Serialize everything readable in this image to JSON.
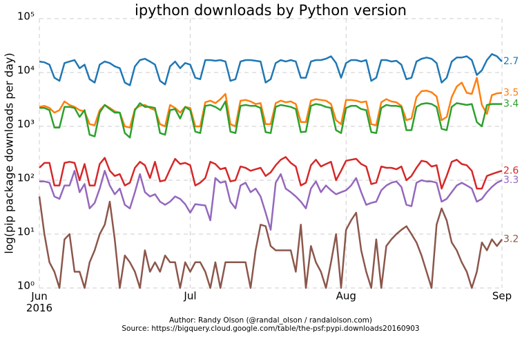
{
  "chart_data": {
    "type": "line",
    "title": "ipython downloads by Python version",
    "y_label": "log(pip package downloads per day)",
    "footer": [
      "Author: Randy Olson (@randal_olson / randalolson.com)",
      "Source: https://bigquery.cloud.google.com/table/the-psf:pypi.downloads20160903"
    ],
    "y_scale": "log",
    "grid": true,
    "ylim": [
      1,
      100000
    ],
    "yticks": [
      {
        "value": 1,
        "label": "10⁰"
      },
      {
        "value": 10,
        "label": "10¹"
      },
      {
        "value": 100,
        "label": "10²"
      },
      {
        "value": 1000,
        "label": "10³"
      },
      {
        "value": 10000,
        "label": "10⁴"
      },
      {
        "value": 100000,
        "label": "10⁵"
      }
    ],
    "xlim": [
      0,
      92
    ],
    "xticks": [
      {
        "value": 0,
        "label": "Jun\n2016"
      },
      {
        "value": 30,
        "label": "Jul"
      },
      {
        "value": 61,
        "label": "Aug"
      },
      {
        "value": 92,
        "label": "Sep"
      }
    ],
    "x": [
      0,
      1,
      2,
      3,
      4,
      5,
      6,
      7,
      8,
      9,
      10,
      11,
      12,
      13,
      14,
      15,
      16,
      17,
      18,
      19,
      20,
      21,
      22,
      23,
      24,
      25,
      26,
      27,
      28,
      29,
      30,
      31,
      32,
      33,
      34,
      35,
      36,
      37,
      38,
      39,
      40,
      41,
      42,
      43,
      44,
      45,
      46,
      47,
      48,
      49,
      50,
      51,
      52,
      53,
      54,
      55,
      56,
      57,
      58,
      59,
      60,
      61,
      62,
      63,
      64,
      65,
      66,
      67,
      68,
      69,
      70,
      71,
      72,
      73,
      74,
      75,
      76,
      77,
      78,
      79,
      80,
      81,
      82,
      83,
      84,
      85,
      86,
      87,
      88,
      89,
      90,
      91,
      92
    ],
    "series": [
      {
        "name": "2.7",
        "color": "#1f77b4",
        "values": [
          16000,
          15500,
          14000,
          8000,
          7000,
          15000,
          16000,
          17000,
          12000,
          14000,
          7500,
          6500,
          14000,
          16000,
          15000,
          13000,
          12000,
          6500,
          5800,
          13000,
          17000,
          18000,
          16000,
          14000,
          7000,
          6000,
          13000,
          16000,
          12000,
          15000,
          14000,
          8000,
          7500,
          17000,
          17000,
          16500,
          17000,
          16000,
          7000,
          7500,
          16000,
          17000,
          17000,
          16500,
          16000,
          6500,
          7500,
          15000,
          17000,
          16000,
          17000,
          16000,
          8000,
          8000,
          16000,
          17000,
          17000,
          18000,
          20000,
          15000,
          8000,
          15000,
          17000,
          17000,
          16000,
          17000,
          7000,
          8000,
          17000,
          17000,
          16000,
          16500,
          14000,
          7500,
          8000,
          16000,
          18000,
          19000,
          18000,
          15000,
          6500,
          8000,
          16000,
          19000,
          19000,
          20000,
          17000,
          9000,
          11000,
          17000,
          22000,
          20000,
          16000
        ]
      },
      {
        "name": "3.5",
        "color": "#ff7f0e",
        "values": [
          2300,
          2400,
          2200,
          1800,
          2000,
          2900,
          2500,
          2300,
          2000,
          1900,
          1100,
          1050,
          2000,
          2500,
          2200,
          1900,
          1800,
          1000,
          950,
          2100,
          2400,
          2500,
          2200,
          2000,
          1100,
          1000,
          2500,
          2200,
          1800,
          2300,
          2200,
          1000,
          1000,
          2800,
          3000,
          2700,
          3200,
          4000,
          1100,
          1000,
          3000,
          3100,
          2900,
          2600,
          2700,
          1100,
          1100,
          2700,
          3000,
          2800,
          2900,
          2600,
          1200,
          1200,
          3000,
          3200,
          3100,
          3000,
          2600,
          1300,
          1100,
          3100,
          3100,
          3000,
          2800,
          2900,
          1100,
          1050,
          2800,
          3200,
          2900,
          2800,
          2400,
          1300,
          1400,
          3500,
          4500,
          4600,
          4300,
          3600,
          1300,
          1500,
          3500,
          5500,
          6500,
          4200,
          4000,
          8000,
          2500,
          1700,
          3800,
          4100,
          4200
        ]
      },
      {
        "name": "3.4",
        "color": "#2ca02c",
        "values": [
          2200,
          2200,
          2000,
          950,
          950,
          2300,
          2300,
          2200,
          1500,
          2000,
          700,
          650,
          1800,
          2500,
          2100,
          1800,
          1800,
          750,
          620,
          2000,
          2700,
          2300,
          2300,
          2200,
          750,
          700,
          2000,
          2100,
          1400,
          2300,
          2000,
          800,
          750,
          2400,
          2500,
          2300,
          2000,
          2900,
          800,
          750,
          2400,
          2500,
          2400,
          2400,
          2200,
          780,
          750,
          2300,
          2500,
          2400,
          2300,
          2100,
          780,
          800,
          2400,
          2600,
          2500,
          2300,
          2200,
          850,
          750,
          2200,
          2400,
          2400,
          2100,
          2000,
          780,
          750,
          2200,
          2500,
          2400,
          2400,
          2300,
          850,
          850,
          2300,
          2600,
          2700,
          2600,
          2300,
          900,
          850,
          2300,
          2700,
          2600,
          2500,
          2600,
          1200,
          1000,
          2500,
          2600,
          2600,
          2600
        ]
      },
      {
        "name": "2.6",
        "color": "#d62728",
        "values": [
          170,
          210,
          210,
          80,
          80,
          210,
          220,
          210,
          100,
          200,
          80,
          80,
          200,
          260,
          150,
          120,
          130,
          80,
          90,
          170,
          220,
          190,
          110,
          220,
          95,
          100,
          160,
          250,
          200,
          210,
          190,
          80,
          90,
          110,
          220,
          200,
          160,
          170,
          95,
          100,
          180,
          170,
          150,
          160,
          170,
          120,
          140,
          190,
          240,
          270,
          210,
          180,
          80,
          90,
          190,
          240,
          180,
          200,
          220,
          100,
          150,
          230,
          240,
          250,
          200,
          180,
          85,
          90,
          180,
          170,
          170,
          160,
          180,
          100,
          120,
          170,
          230,
          220,
          180,
          190,
          70,
          120,
          220,
          240,
          200,
          190,
          150,
          70,
          70,
          120,
          130,
          140,
          150
        ]
      },
      {
        "name": "3.3",
        "color": "#9467bd",
        "values": [
          95,
          95,
          90,
          50,
          45,
          80,
          80,
          150,
          60,
          85,
          30,
          38,
          70,
          150,
          80,
          55,
          70,
          35,
          30,
          60,
          130,
          60,
          50,
          55,
          40,
          35,
          40,
          50,
          45,
          36,
          25,
          36,
          35,
          34,
          18,
          110,
          90,
          95,
          40,
          30,
          80,
          90,
          60,
          70,
          50,
          25,
          12,
          90,
          130,
          70,
          60,
          50,
          40,
          30,
          70,
          95,
          60,
          80,
          65,
          55,
          60,
          65,
          80,
          110,
          60,
          35,
          38,
          40,
          65,
          80,
          90,
          95,
          75,
          35,
          33,
          90,
          100,
          95,
          95,
          90,
          40,
          45,
          60,
          80,
          90,
          80,
          70,
          40,
          45,
          60,
          75,
          90,
          100
        ]
      },
      {
        "name": "3.2",
        "color": "#8c564b",
        "values": [
          50,
          10,
          3,
          2,
          1,
          8,
          10,
          2,
          2,
          1,
          3,
          5,
          10,
          15,
          40,
          8,
          1,
          4,
          3,
          2,
          1,
          5,
          2,
          3,
          2,
          4,
          3,
          3,
          1,
          3,
          2,
          3,
          3,
          2,
          1,
          3,
          1,
          3,
          3,
          3,
          3,
          3,
          1,
          5,
          15,
          14,
          6,
          5,
          5,
          5,
          5,
          2,
          15,
          1,
          6,
          3,
          2,
          1,
          3,
          10,
          1,
          12,
          18,
          25,
          5,
          2,
          1,
          8,
          1,
          6,
          8,
          10,
          12,
          14,
          10,
          7,
          4,
          2,
          1,
          15,
          30,
          18,
          7,
          5,
          3,
          2,
          1,
          2,
          7,
          5,
          8,
          6,
          8
        ]
      }
    ]
  }
}
